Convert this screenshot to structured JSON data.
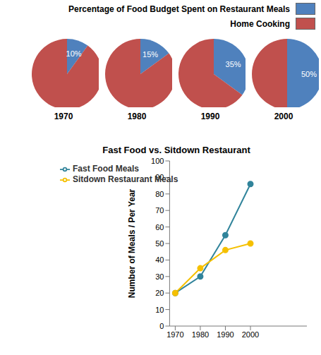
{
  "chart_data": [
    {
      "type": "pie",
      "categories": [
        "Percentage of Food Budget Spent on Restaurant Meals",
        "Home Cooking"
      ],
      "colors": [
        "#4f81bd",
        "#c0504d"
      ],
      "legend": "top right",
      "data_labels": true,
      "series": [
        {
          "name": "1970",
          "values": [
            10,
            90
          ],
          "value_labels": [
            "10%",
            null
          ]
        },
        {
          "name": "1980",
          "values": [
            15,
            85
          ],
          "value_labels": [
            "15%",
            null
          ]
        },
        {
          "name": "1990",
          "values": [
            35,
            65
          ],
          "value_labels": [
            "35%",
            null
          ]
        },
        {
          "name": "2000",
          "values": [
            50,
            50
          ],
          "value_labels": [
            "50%",
            null
          ]
        }
      ]
    },
    {
      "type": "line",
      "title": "Fast Food vs. Sitdown Restaurant",
      "y_label": "Number of Meals / Per Year",
      "categories": [
        "1970",
        "1980",
        "1990",
        "2000"
      ],
      "ylim": [
        0,
        100
      ],
      "yticks": [
        0,
        10,
        20,
        30,
        40,
        50,
        60,
        70,
        80,
        90,
        100
      ],
      "grid": false,
      "legend": "top left",
      "series": [
        {
          "name": "Fast Food Meals",
          "color": "#31849b",
          "values": [
            20,
            30,
            55,
            86
          ],
          "marker": "circle",
          "line_style": "solid"
        },
        {
          "name": "Sitdown Restaurant Meals",
          "color": "#f5c000",
          "values": [
            20,
            35,
            46,
            50
          ],
          "marker": "circle",
          "line_style": "solid"
        }
      ]
    }
  ]
}
